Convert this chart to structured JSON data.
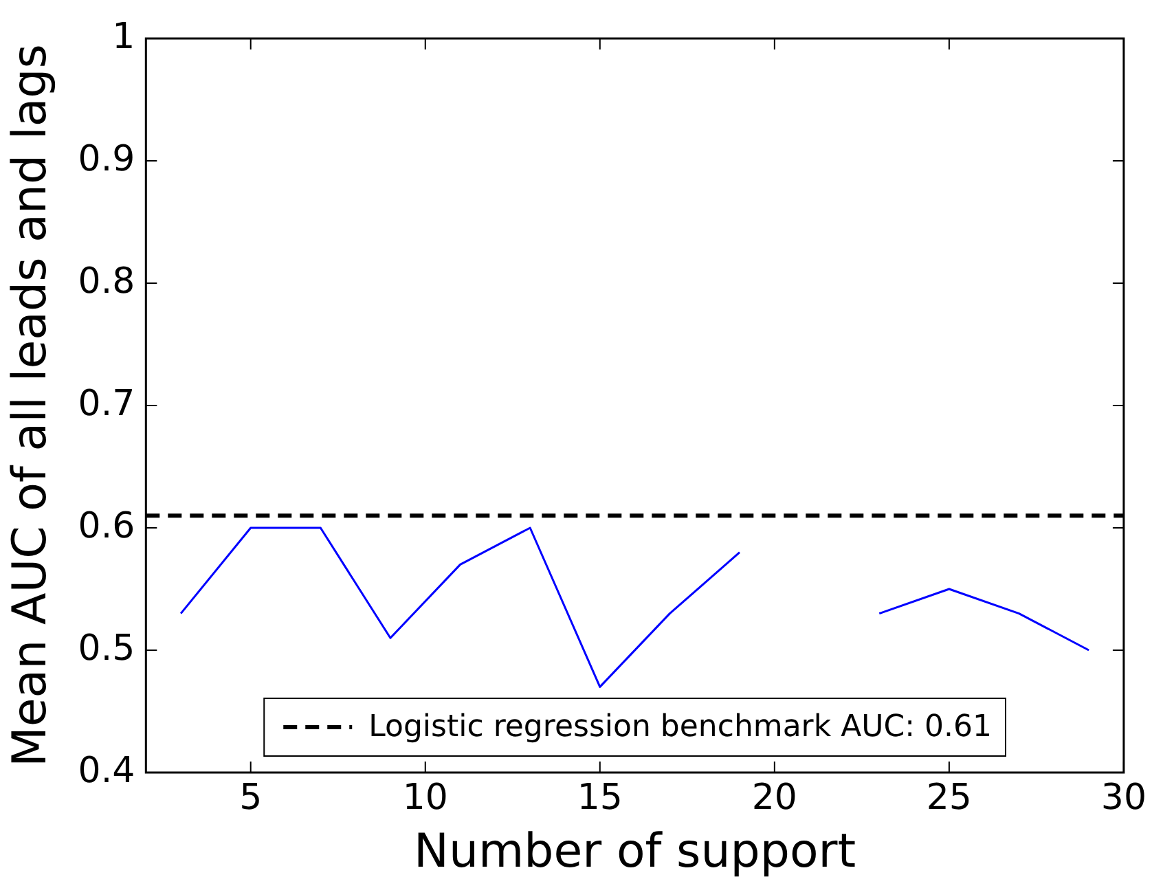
{
  "chart_data": {
    "type": "line",
    "xlabel": "Number of support",
    "ylabel": "Mean AUC of all leads and lags",
    "x": [
      3,
      5,
      7,
      9,
      11,
      13,
      15,
      17,
      19,
      21,
      23,
      25,
      27,
      29
    ],
    "series": [
      {
        "color": "#0000ff",
        "values": [
          0.53,
          0.6,
          0.6,
          0.51,
          0.57,
          0.6,
          0.47,
          0.53,
          0.58,
          null,
          0.53,
          0.55,
          0.53,
          0.5
        ]
      }
    ],
    "xlim": [
      2,
      30
    ],
    "xticks": [
      5,
      10,
      15,
      20,
      25,
      30
    ],
    "ylim": [
      0.4,
      1.0
    ],
    "yticks": [
      0.4,
      0.5,
      0.6,
      0.7,
      0.8,
      0.9,
      1.0
    ],
    "ref_lines": [
      {
        "axis": "y",
        "value": 0.61,
        "label": "Logistic regression benchmark AUC: 0.61",
        "color": "#000000",
        "line_style": "dashed"
      }
    ],
    "legend": "bottom",
    "grid": false,
    "marker": "none",
    "line_style": "solid"
  }
}
